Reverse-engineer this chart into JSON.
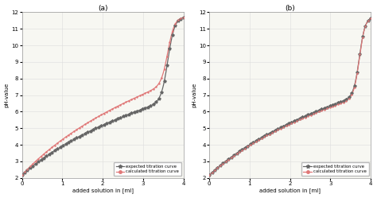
{
  "title_a": "(a)",
  "title_b": "(b)",
  "xlabel": "added solution in [ml]",
  "ylabel": "pH-value",
  "xlim": [
    0,
    4
  ],
  "ylim": [
    2,
    12
  ],
  "yticks": [
    2,
    3,
    4,
    5,
    6,
    7,
    8,
    9,
    10,
    11,
    12
  ],
  "xticks": [
    0,
    1,
    2,
    3,
    4
  ],
  "legend_entries": [
    "expected titration curve",
    "calculated titration curve"
  ],
  "curve_color_expected": "#666666",
  "curve_color_calculated": "#e07878",
  "bg_color": "#f7f7f2",
  "n_markers": 60,
  "eq_a": 3.62,
  "eq_b": 3.72,
  "steep_a": 12.0,
  "steep_b": 14.0,
  "y_min": 2.18,
  "y_max": 11.72,
  "pre_rise_scale_a_exp": 0.8,
  "pre_rise_scale_a_calc": 1.35,
  "pre_rise_scale_b": 0.95
}
